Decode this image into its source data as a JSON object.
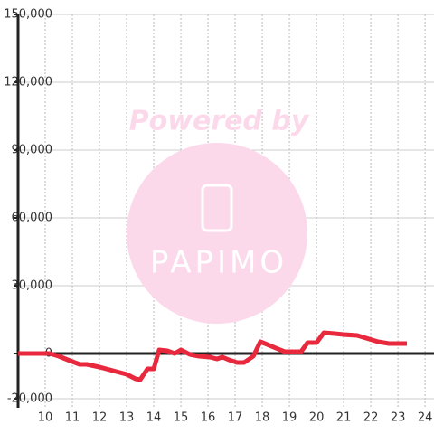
{
  "chart_data": {
    "type": "line",
    "watermark": [
      "Powered by",
      "PAPIMO"
    ],
    "x": [
      9.0,
      10.17,
      10.5,
      10.83,
      11.27,
      11.53,
      12.0,
      12.5,
      13.0,
      13.33,
      13.5,
      13.77,
      14.0,
      14.2,
      14.5,
      14.77,
      15.0,
      15.33,
      15.67,
      16.07,
      16.33,
      16.53,
      16.77,
      17.07,
      17.33,
      17.67,
      17.93,
      18.1,
      18.5,
      18.83,
      19.43,
      19.67,
      20.0,
      20.27,
      20.67,
      21.0,
      21.5,
      21.83,
      22.27,
      22.67,
      23.33
    ],
    "series": [
      {
        "color": "#e8283c",
        "values": [
          0,
          0,
          -1200,
          -2800,
          -4800,
          -4800,
          -6000,
          -7600,
          -9200,
          -11200,
          -11600,
          -6800,
          -6800,
          1600,
          1200,
          0,
          1600,
          -400,
          -1200,
          -1600,
          -2400,
          -1600,
          -2800,
          -4000,
          -4000,
          -1200,
          5200,
          4400,
          2400,
          800,
          800,
          4800,
          4800,
          9200,
          8800,
          8400,
          8000,
          6800,
          5200,
          4400,
          4400
        ]
      }
    ],
    "xlim": [
      9,
      24.33
    ],
    "xticks": [
      10,
      11,
      12,
      13,
      14,
      15,
      16,
      17,
      18,
      19,
      20,
      21,
      22,
      23,
      24
    ],
    "ylim": [
      -24000,
      150000
    ],
    "yticks": [
      {
        "value": -20000,
        "label": "-20,000"
      },
      0,
      {
        "value": 30000,
        "label": "30,000"
      },
      {
        "value": 60000,
        "label": "60,000"
      },
      {
        "value": 90000,
        "label": "90,000"
      },
      {
        "value": 120000,
        "label": "120,000"
      },
      {
        "value": 150000,
        "label": "150,000"
      }
    ],
    "grid": true
  }
}
